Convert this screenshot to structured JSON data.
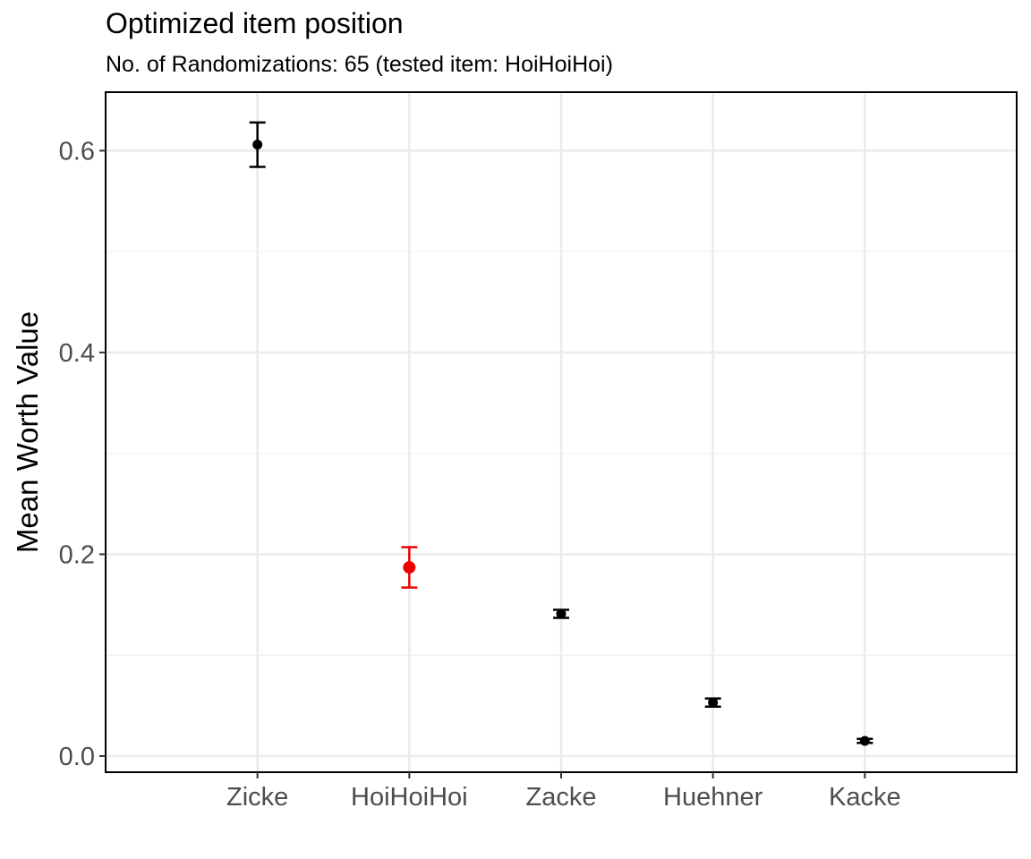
{
  "chart_data": {
    "type": "scatter",
    "title": "Optimized item position",
    "subtitle": "No. of Randomizations: 65 (tested item: HoiHoiHoi)",
    "xlabel": "",
    "ylabel": "Mean Worth Value",
    "categories": [
      "Zicke",
      "HoiHoiHoi",
      "Zacke",
      "Huehner",
      "Kacke"
    ],
    "values": [
      0.606,
      0.187,
      0.141,
      0.053,
      0.015
    ],
    "error_low": [
      0.584,
      0.167,
      0.137,
      0.049,
      0.013
    ],
    "error_high": [
      0.628,
      0.207,
      0.145,
      0.057,
      0.017
    ],
    "highlighted_category": "HoiHoiHoi",
    "colors": {
      "default": "#000000",
      "highlight": "#ee0000",
      "grid_major": "#ebebeb",
      "grid_minor": "#f2f2f2"
    },
    "yticks": [
      "0.0",
      "0.2",
      "0.4",
      "0.6"
    ],
    "ylim": [
      -0.016,
      0.658
    ],
    "grid": true,
    "legend": "none"
  }
}
